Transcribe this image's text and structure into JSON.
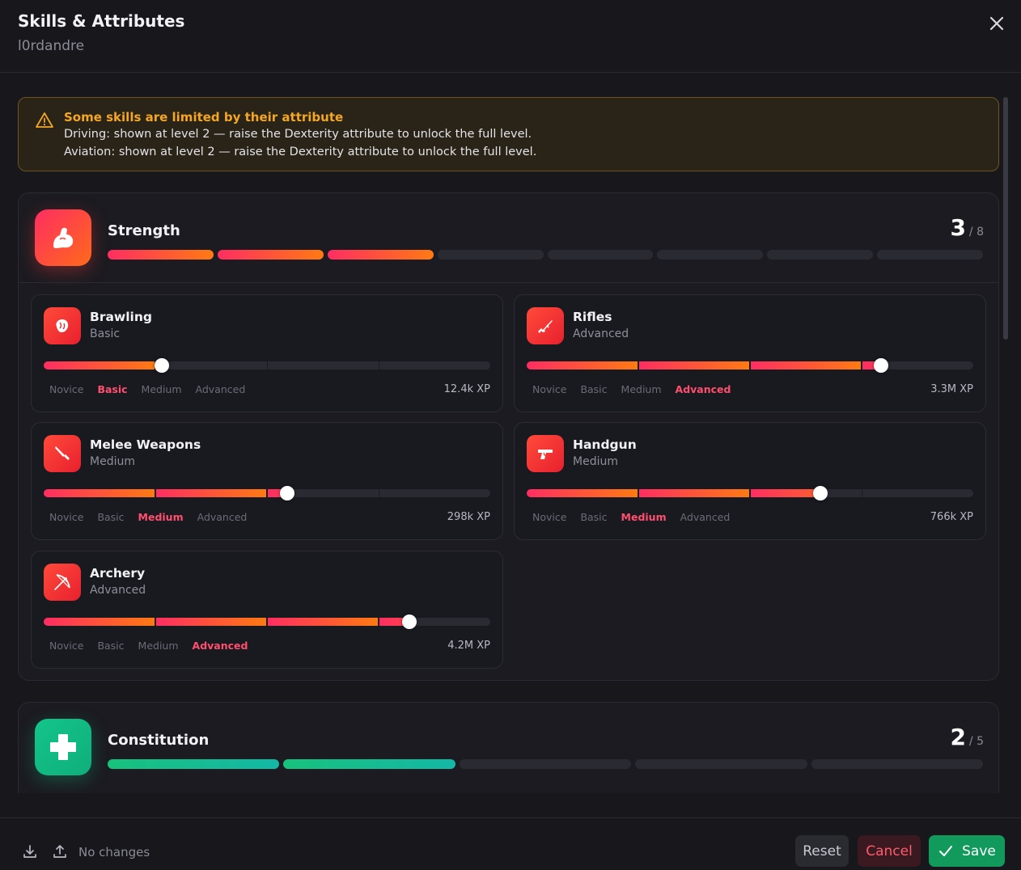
{
  "header": {
    "title": "Skills & Attributes",
    "subtitle": "l0rdandre"
  },
  "warning": {
    "title": "Some skills are limited by their attribute",
    "lines": [
      "Driving: shown at level 2 — raise the Dexterity attribute to unlock the full level.",
      "Aviation: shown at level 2 — raise the Dexterity attribute to unlock the full level."
    ]
  },
  "attributes": [
    {
      "name": "Strength",
      "level": "3",
      "max": "/ 8",
      "level_value": 3,
      "max_value": 8,
      "color": "#ff4a3a"
    },
    {
      "name": "Constitution",
      "level": "2",
      "max": "/ 5",
      "level_value": 2,
      "max_value": 5,
      "color": "#17c27c"
    }
  ],
  "tier_labels": [
    "Novice",
    "Basic",
    "Medium",
    "Advanced"
  ],
  "skills": [
    {
      "name": "Brawling",
      "tier": "Basic",
      "active_tier": 1,
      "progress": 0.265,
      "xp": "12.4k XP",
      "icon": "boxing-glove-icon"
    },
    {
      "name": "Rifles",
      "tier": "Advanced",
      "active_tier": 3,
      "progress": 0.794,
      "xp": "3.3M XP",
      "icon": "rifle-icon"
    },
    {
      "name": "Melee Weapons",
      "tier": "Medium",
      "active_tier": 2,
      "progress": 0.546,
      "xp": "298k XP",
      "icon": "knife-icon"
    },
    {
      "name": "Handgun",
      "tier": "Medium",
      "active_tier": 2,
      "progress": 0.658,
      "xp": "766k XP",
      "icon": "pistol-icon"
    },
    {
      "name": "Archery",
      "tier": "Advanced",
      "active_tier": 3,
      "progress": 0.818,
      "xp": "4.2M XP",
      "icon": "bow-icon"
    }
  ],
  "footer": {
    "status": "No changes",
    "reset": "Reset",
    "cancel": "Cancel",
    "save": "Save"
  }
}
